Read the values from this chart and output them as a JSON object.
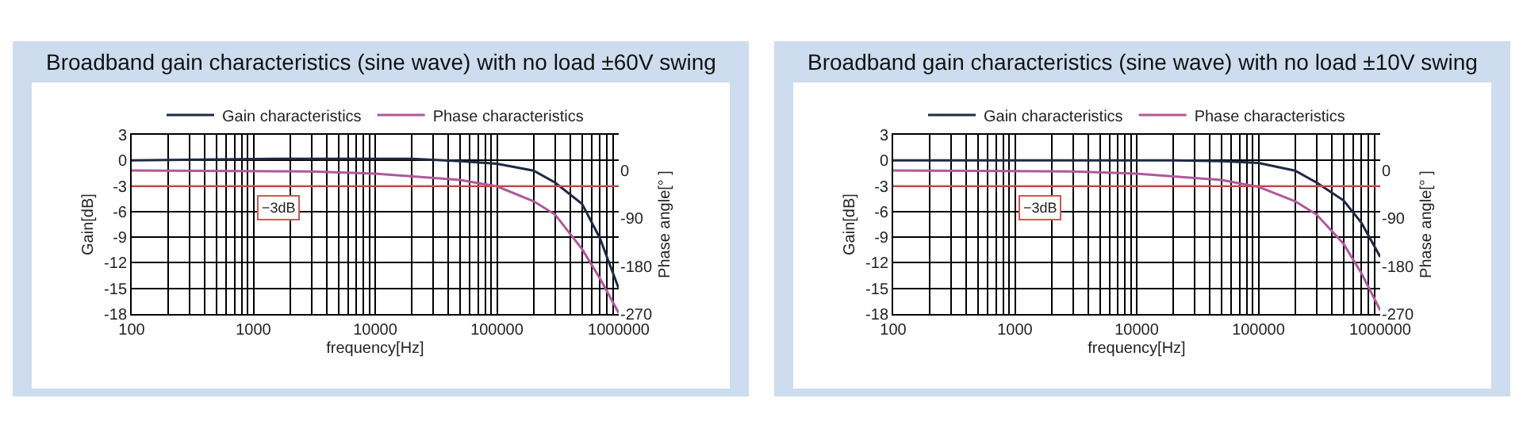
{
  "chart_data": [
    {
      "type": "line",
      "title": "Broadband gain characteristics (sine wave) with no load ±60V swing",
      "xlabel": "frequency[Hz]",
      "ylabel": "Gain[dB]",
      "y2label": "Phase angle[° ]",
      "log": "x",
      "grid": true,
      "legend": "top",
      "marker": "none",
      "line_style": "solid",
      "xlim": [
        100,
        1000000
      ],
      "xticks": [
        100,
        1000,
        10000,
        100000,
        1000000
      ],
      "ylim": [
        -18,
        3
      ],
      "yticks": [
        3,
        0,
        -3,
        -6,
        -9,
        -12,
        -15,
        -18
      ],
      "y2lim": [
        -270,
        67
      ],
      "y2ticks": [
        0,
        -90,
        -180,
        -270
      ],
      "series": [
        {
          "name": "Gain characteristics",
          "color": "#1f2a44",
          "x": [
            100,
            1500,
            20000,
            50000,
            100000,
            200000,
            300000,
            500000,
            700000,
            1000000
          ],
          "values": [
            0,
            0.2,
            0.2,
            -0.1,
            -0.4,
            -1.2,
            -2.6,
            -5.1,
            -9.1,
            -15
          ]
        },
        {
          "name": "Phase characteristics",
          "color": "#b0589a",
          "axis": "y2",
          "x": [
            100,
            3000,
            10000,
            50000,
            100000,
            200000,
            300000,
            500000,
            700000,
            1000000
          ],
          "values": [
            0,
            -2,
            -6,
            -18,
            -30,
            -58,
            -83,
            -148,
            -203,
            -268
          ]
        }
      ],
      "ref_lines": [
        {
          "axis": "y",
          "value": -3,
          "label": "−3dB",
          "color": "#d9534f"
        }
      ]
    },
    {
      "type": "line",
      "title": "Broadband gain characteristics (sine wave) with no load ±10V swing",
      "xlabel": "frequency[Hz]",
      "ylabel": "Gain[dB]",
      "y2label": "Phase angle[° ]",
      "log": "x",
      "grid": true,
      "legend": "top",
      "marker": "none",
      "line_style": "solid",
      "xlim": [
        100,
        1000000
      ],
      "xticks": [
        100,
        1000,
        10000,
        100000,
        1000000
      ],
      "ylim": [
        -18,
        3
      ],
      "yticks": [
        3,
        0,
        -3,
        -6,
        -9,
        -12,
        -15,
        -18
      ],
      "y2lim": [
        -270,
        67
      ],
      "y2ticks": [
        0,
        -90,
        -180,
        -270
      ],
      "series": [
        {
          "name": "Gain characteristics",
          "color": "#1f2a44",
          "x": [
            100,
            20000,
            50000,
            100000,
            200000,
            300000,
            500000,
            700000,
            1000000
          ],
          "values": [
            0,
            0,
            -0.1,
            -0.3,
            -1.2,
            -2.6,
            -4.7,
            -7.3,
            -11.3
          ]
        },
        {
          "name": "Phase characteristics",
          "color": "#b0589a",
          "axis": "y2",
          "x": [
            100,
            3000,
            10000,
            50000,
            100000,
            200000,
            300000,
            500000,
            700000,
            1000000
          ],
          "values": [
            0,
            -2,
            -6,
            -18,
            -31,
            -58,
            -83,
            -138,
            -193,
            -263
          ]
        }
      ],
      "ref_lines": [
        {
          "axis": "y",
          "value": -3,
          "label": "−3dB",
          "color": "#d9534f"
        }
      ]
    }
  ]
}
